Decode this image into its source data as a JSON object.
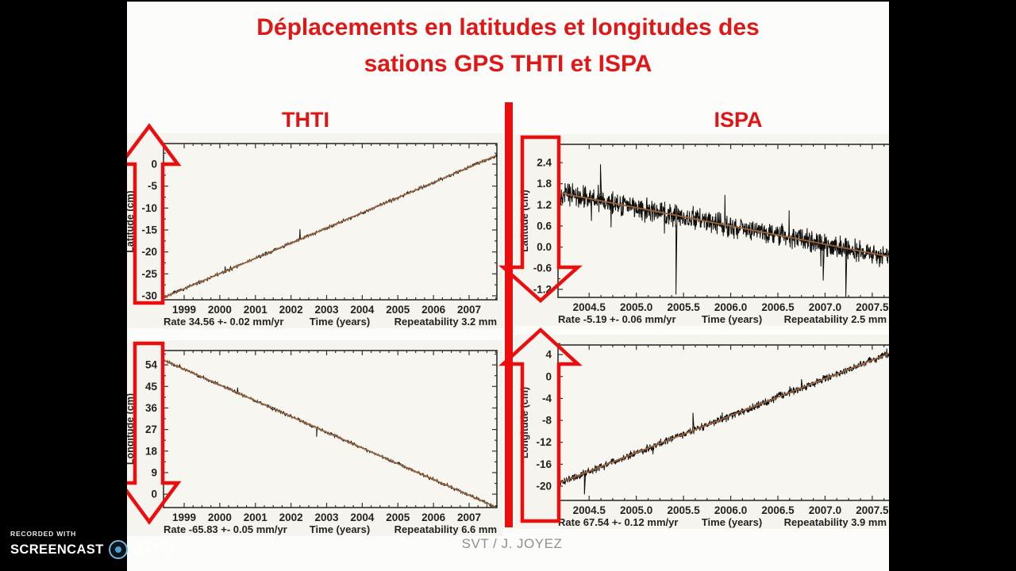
{
  "title": {
    "line1": "Déplacements en latitudes et longitudes des",
    "line2": "sations GPS THTI et ISPA"
  },
  "columns": {
    "left_header": "THTI",
    "right_header": "ISPA"
  },
  "footer": {
    "credit": "SVT / J. JOYEZ"
  },
  "watermark": {
    "recorded_with": "RECORDED WITH",
    "brand_left": "SCREENCAST",
    "brand_right": "MATIC"
  },
  "colors": {
    "accent_red": "#e01717",
    "annotation_red": "#ee0d0d",
    "trend_brown": "#9a6238",
    "data_black": "#100e0c",
    "paper": "#f5f4ee",
    "frame": "#33302c",
    "credit_grey": "#8f8f8f"
  },
  "chart_data": [
    {
      "type": "line",
      "station": "THTI",
      "ylabel": "Latitude (cm)",
      "xlabel": "Time (years)",
      "rate_label": "Rate 34.56 +- 0.02 mm/yr",
      "repeatability_label": "Repeatability 3.2 mm",
      "x_tick_labels": [
        "1999",
        "2000",
        "2001",
        "2002",
        "2003",
        "2004",
        "2005",
        "2006",
        "2007"
      ],
      "y_tick_labels": [
        "0",
        "-5",
        "-10",
        "-15",
        "-20",
        "-25",
        "-30"
      ],
      "x_range": [
        1998.42,
        2007.78
      ],
      "y_range": [
        -30.9,
        4.7
      ],
      "trend": {
        "x0": 1998.45,
        "y0": -30.3,
        "x1": 2007.75,
        "y1": 1.9
      },
      "noise_amp_cm": 0.42,
      "spikes": [
        {
          "x": 2000.15,
          "to": -23.3
        },
        {
          "x": 2002.25,
          "to": -14.8
        }
      ],
      "arrow": "up",
      "grid": false
    },
    {
      "type": "line",
      "station": "ISPA",
      "ylabel": "Latitude (cm)",
      "xlabel": "Time (years)",
      "rate_label": "Rate -5.19 +- 0.06 mm/yr",
      "repeatability_label": "Repeatability 2.5 mm",
      "x_tick_labels": [
        "2004.5",
        "2005.0",
        "2005.5",
        "2006.0",
        "2006.5",
        "2007.0",
        "2007.5"
      ],
      "y_tick_labels": [
        "2.4",
        "1.8",
        "1.2",
        "0.6",
        "0.0",
        "-0.6",
        "-1.2"
      ],
      "x_range": [
        2004.17,
        2007.93
      ],
      "y_range": [
        -1.43,
        2.92
      ],
      "trend": {
        "x0": 2004.17,
        "y0": 1.55,
        "x1": 2007.93,
        "y1": -0.4
      },
      "noise_amp_cm": 0.38,
      "spikes": [
        {
          "x": 2004.62,
          "to": 2.35
        },
        {
          "x": 2005.42,
          "to": -1.35
        },
        {
          "x": 2006.98,
          "to": -0.95
        },
        {
          "x": 2007.22,
          "to": -1.42
        }
      ],
      "arrow": "down",
      "grid": false
    },
    {
      "type": "line",
      "station": "THTI",
      "ylabel": "Longitude (cm)",
      "xlabel": "Time (years)",
      "rate_label": "Rate -65.83 +- 0.05 mm/yr",
      "repeatability_label": "Repeatability 6.6 mm",
      "x_tick_labels": [
        "1999",
        "2000",
        "2001",
        "2002",
        "2003",
        "2004",
        "2005",
        "2006",
        "2007"
      ],
      "y_tick_labels": [
        "54",
        "45",
        "36",
        "27",
        "18",
        "9",
        "0"
      ],
      "x_range": [
        1998.42,
        2007.78
      ],
      "y_range": [
        -5.6,
        60.0
      ],
      "trend": {
        "x0": 1998.45,
        "y0": 55.8,
        "x1": 2007.75,
        "y1": -5.4
      },
      "noise_amp_cm": 0.8,
      "spikes": [
        {
          "x": 2000.5,
          "to": 44.5
        },
        {
          "x": 2002.72,
          "to": 24.0
        }
      ],
      "arrow": "down",
      "grid": false
    },
    {
      "type": "line",
      "station": "ISPA",
      "ylabel": "Longitude (cm)",
      "xlabel": "Time (years)",
      "rate_label": "Rate 67.54 +- 0.12 mm/yr",
      "repeatability_label": "Repeatability 3.9 mm",
      "x_tick_labels": [
        "2004.5",
        "2005.0",
        "2005.5",
        "2006.0",
        "2006.5",
        "2007.0",
        "2007.5"
      ],
      "y_tick_labels": [
        "4",
        "0",
        "-4",
        "-8",
        "-12",
        "-16",
        "-20"
      ],
      "x_range": [
        2004.17,
        2007.93
      ],
      "y_range": [
        -22.6,
        5.75
      ],
      "trend": {
        "x0": 2004.17,
        "y0": -19.5,
        "x1": 2007.93,
        "y1": 5.9
      },
      "noise_amp_cm": 0.85,
      "spikes": [
        {
          "x": 2004.45,
          "to": -21.5
        },
        {
          "x": 2005.6,
          "to": -6.6
        },
        {
          "x": 2006.75,
          "to": -0.5
        }
      ],
      "arrow": "up",
      "grid": false
    }
  ]
}
